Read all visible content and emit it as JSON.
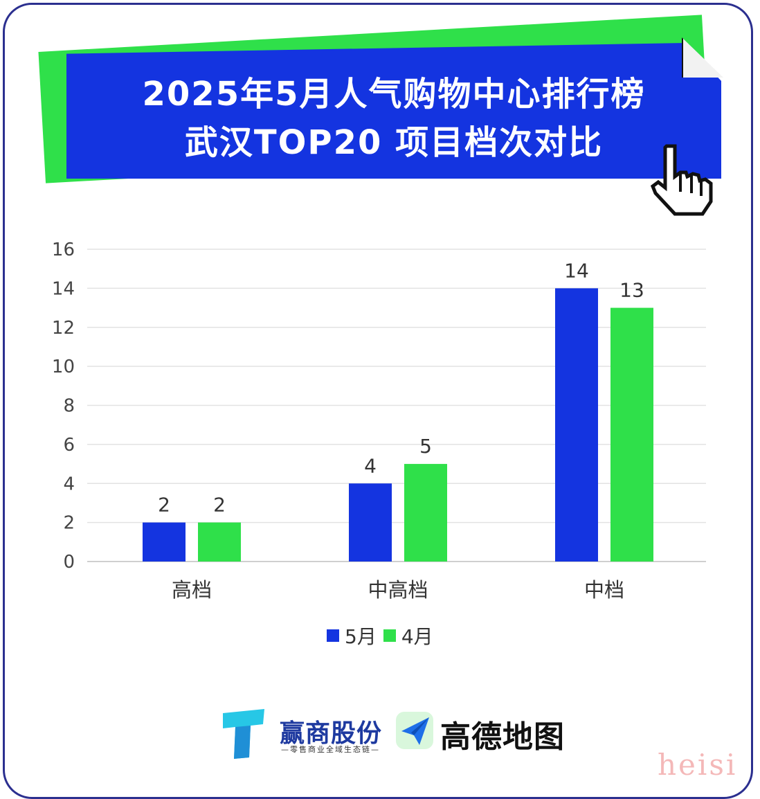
{
  "header": {
    "title_line1": "2025年5月人气购物中心排行榜",
    "title_line2": "武汉TOP20 项目档次对比"
  },
  "colors": {
    "banner_blue": "#1434e0",
    "banner_green": "#2fe04a",
    "series_may": "#1434e0",
    "series_april": "#2fe04a",
    "frame": "#2b2f8f"
  },
  "icons": [
    "hand-pointer-cursor-icon",
    "yingshang-t-logo-icon",
    "amap-paper-plane-icon"
  ],
  "chart_data": {
    "type": "bar",
    "categories": [
      "高档",
      "中高档",
      "中档"
    ],
    "series": [
      {
        "name": "5月",
        "values": [
          2,
          4,
          14
        ]
      },
      {
        "name": "4月",
        "values": [
          2,
          5,
          13
        ]
      }
    ],
    "ylim": [
      0,
      16
    ],
    "yticks": [
      0,
      2,
      4,
      6,
      8,
      10,
      12,
      14,
      16
    ],
    "grid": true,
    "legend_position": "bottom-center",
    "data_labels": true
  },
  "footer": {
    "brand1": "赢商股份",
    "brand1_sub": "—零售商业全域生态链—",
    "brand2": "高德地图",
    "watermark": "heisi"
  }
}
